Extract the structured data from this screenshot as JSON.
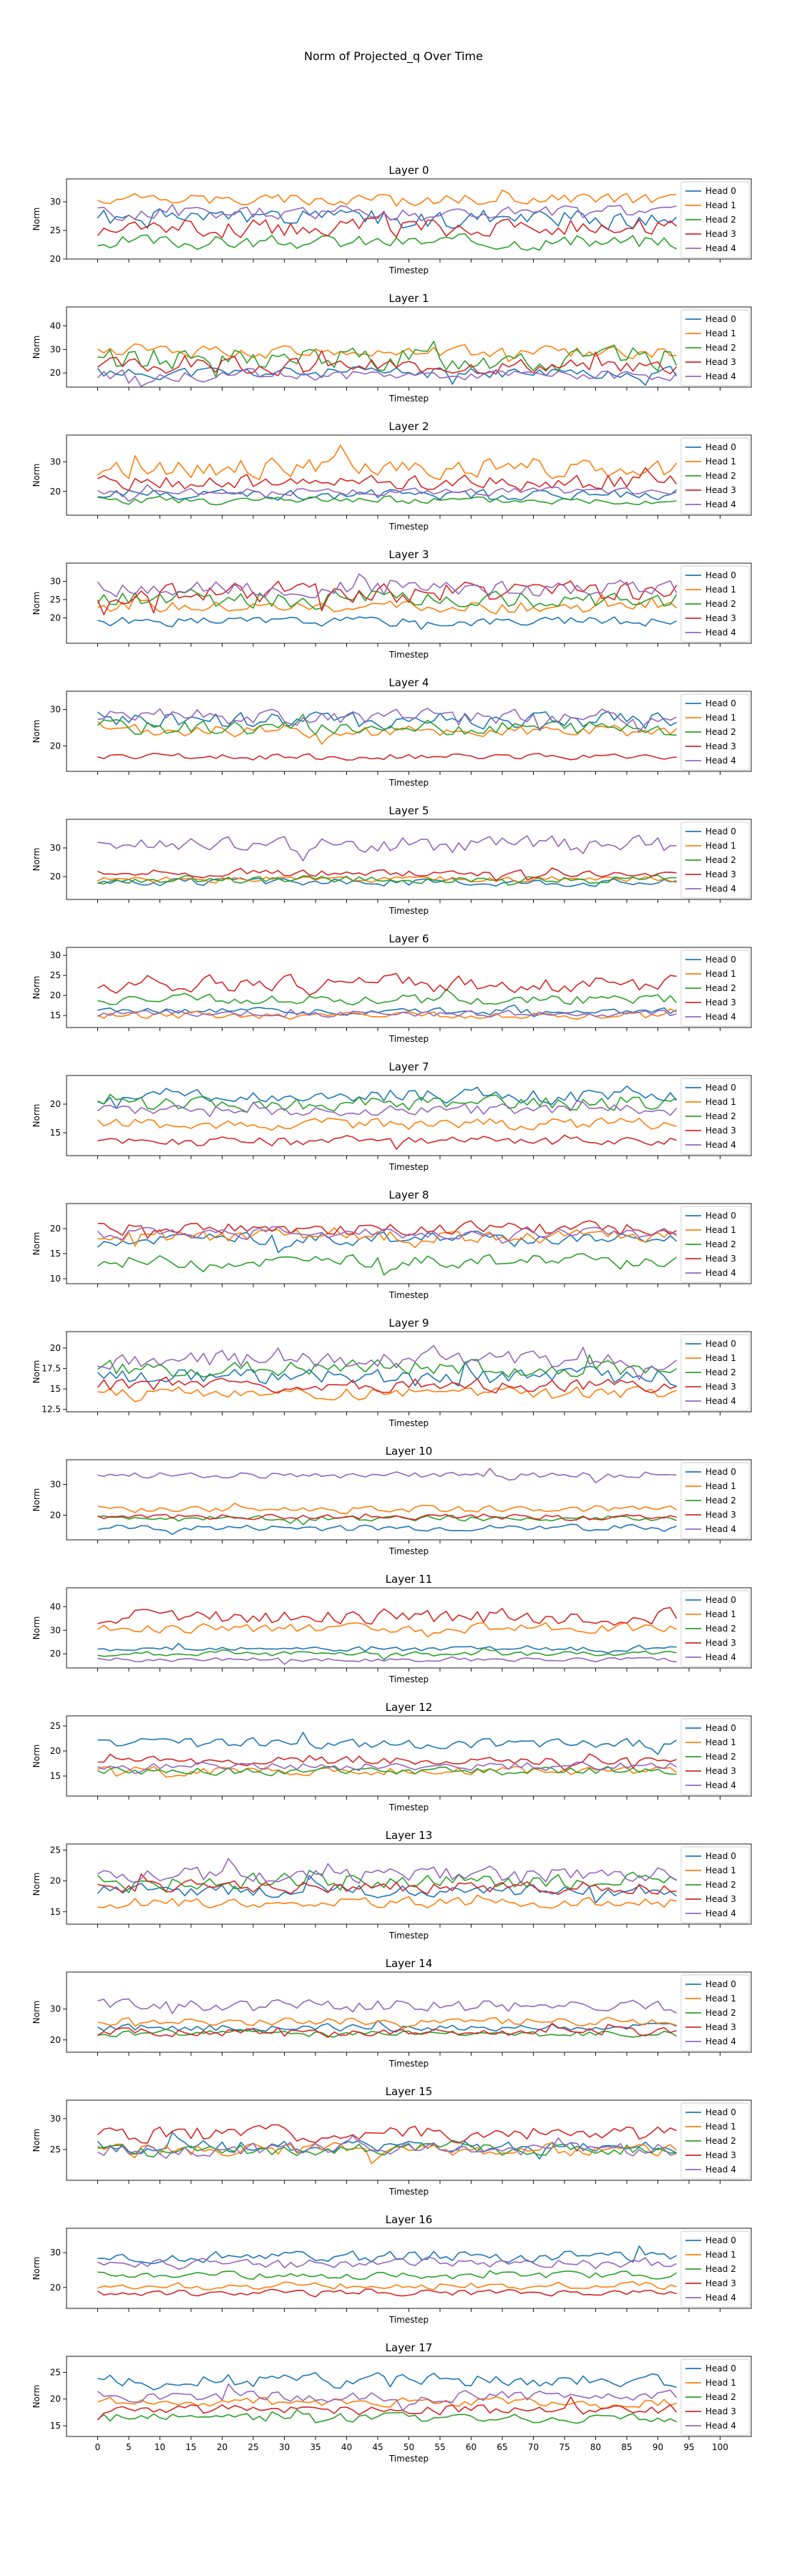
{
  "figure": {
    "title": "Norm of Projected_q Over Time",
    "series_colors": [
      "#1f77b4",
      "#ff7f0e",
      "#2ca02c",
      "#d62728",
      "#9467bd"
    ]
  },
  "chart_data": [
    {
      "type": "line",
      "title": "Layer 0",
      "xlabel": "Timestep",
      "ylabel": "Norm",
      "xlim": [
        -5,
        105
      ],
      "ylim": [
        20,
        34
      ],
      "yticks": [
        20,
        25,
        30
      ],
      "legend": "right",
      "series": [
        {
          "name": "Head 0",
          "base": 27,
          "amp": 2.0,
          "seed": 1
        },
        {
          "name": "Head 1",
          "base": 30.5,
          "amp": 1.2,
          "seed": 2
        },
        {
          "name": "Head 2",
          "base": 23,
          "amp": 1.5,
          "seed": 3
        },
        {
          "name": "Head 3",
          "base": 25.5,
          "amp": 2.0,
          "seed": 4
        },
        {
          "name": "Head 4",
          "base": 28,
          "amp": 1.5,
          "seed": 5
        }
      ]
    },
    {
      "type": "line",
      "title": "Layer 1",
      "xlabel": "Timestep",
      "ylabel": "Norm",
      "xlim": [
        -5,
        105
      ],
      "ylim": [
        14,
        48
      ],
      "yticks": [
        20,
        30,
        40
      ],
      "legend": "right",
      "series": [
        {
          "name": "Head 0",
          "base": 20,
          "amp": 3,
          "seed": 11
        },
        {
          "name": "Head 1",
          "base": 29,
          "amp": 3,
          "seed": 12
        },
        {
          "name": "Head 2",
          "base": 26,
          "amp": 6,
          "seed": 13
        },
        {
          "name": "Head 3",
          "base": 23,
          "amp": 4,
          "seed": 14
        },
        {
          "name": "Head 4",
          "base": 19,
          "amp": 2.5,
          "seed": 15
        }
      ]
    },
    {
      "type": "line",
      "title": "Layer 2",
      "xlabel": "Timestep",
      "ylabel": "Norm",
      "xlim": [
        -5,
        105
      ],
      "ylim": [
        12,
        39
      ],
      "yticks": [
        20,
        30
      ],
      "legend": "right",
      "series": [
        {
          "name": "Head 0",
          "base": 19,
          "amp": 2,
          "seed": 21
        },
        {
          "name": "Head 1",
          "base": 28,
          "amp": 4,
          "seed": 22
        },
        {
          "name": "Head 2",
          "base": 17,
          "amp": 1.5,
          "seed": 23
        },
        {
          "name": "Head 3",
          "base": 23,
          "amp": 3,
          "seed": 24
        },
        {
          "name": "Head 4",
          "base": 20,
          "amp": 1.5,
          "seed": 25
        }
      ]
    },
    {
      "type": "line",
      "title": "Layer 3",
      "xlabel": "Timestep",
      "ylabel": "Norm",
      "xlim": [
        -5,
        105
      ],
      "ylim": [
        13,
        35
      ],
      "yticks": [
        20,
        25,
        30
      ],
      "legend": "right",
      "series": [
        {
          "name": "Head 0",
          "base": 19,
          "amp": 1.5,
          "seed": 31
        },
        {
          "name": "Head 1",
          "base": 23,
          "amp": 2,
          "seed": 32
        },
        {
          "name": "Head 2",
          "base": 25,
          "amp": 3,
          "seed": 33
        },
        {
          "name": "Head 3",
          "base": 27,
          "amp": 3.5,
          "seed": 34
        },
        {
          "name": "Head 4",
          "base": 28,
          "amp": 2.5,
          "seed": 35
        }
      ]
    },
    {
      "type": "line",
      "title": "Layer 4",
      "xlabel": "Timestep",
      "ylabel": "Norm",
      "xlim": [
        -5,
        105
      ],
      "ylim": [
        13,
        35
      ],
      "yticks": [
        20,
        30
      ],
      "legend": "right",
      "series": [
        {
          "name": "Head 0",
          "base": 27,
          "amp": 3,
          "seed": 41
        },
        {
          "name": "Head 1",
          "base": 24,
          "amp": 2,
          "seed": 42
        },
        {
          "name": "Head 2",
          "base": 25,
          "amp": 2.5,
          "seed": 43
        },
        {
          "name": "Head 3",
          "base": 17,
          "amp": 1,
          "seed": 44
        },
        {
          "name": "Head 4",
          "base": 28,
          "amp": 2.5,
          "seed": 45
        }
      ]
    },
    {
      "type": "line",
      "title": "Layer 5",
      "xlabel": "Timestep",
      "ylabel": "Norm",
      "xlim": [
        -5,
        105
      ],
      "ylim": [
        12,
        40
      ],
      "yticks": [
        20,
        30
      ],
      "legend": "right",
      "series": [
        {
          "name": "Head 0",
          "base": 18,
          "amp": 1.5,
          "seed": 51
        },
        {
          "name": "Head 1",
          "base": 19,
          "amp": 1.2,
          "seed": 52
        },
        {
          "name": "Head 2",
          "base": 19,
          "amp": 1.5,
          "seed": 53
        },
        {
          "name": "Head 3",
          "base": 21,
          "amp": 1.5,
          "seed": 54
        },
        {
          "name": "Head 4",
          "base": 31,
          "amp": 3.5,
          "seed": 55
        }
      ]
    },
    {
      "type": "line",
      "title": "Layer 6",
      "xlabel": "Timestep",
      "ylabel": "Norm",
      "xlim": [
        -5,
        105
      ],
      "ylim": [
        12,
        32
      ],
      "yticks": [
        15,
        20,
        25,
        30
      ],
      "legend": "right",
      "series": [
        {
          "name": "Head 0",
          "base": 16,
          "amp": 1,
          "seed": 61
        },
        {
          "name": "Head 1",
          "base": 15,
          "amp": 1,
          "seed": 62
        },
        {
          "name": "Head 2",
          "base": 19,
          "amp": 1.5,
          "seed": 63
        },
        {
          "name": "Head 3",
          "base": 23,
          "amp": 2.5,
          "seed": 64
        },
        {
          "name": "Head 4",
          "base": 15.5,
          "amp": 1,
          "seed": 65
        }
      ]
    },
    {
      "type": "line",
      "title": "Layer 7",
      "xlabel": "Timestep",
      "ylabel": "Norm",
      "xlim": [
        -5,
        105
      ],
      "ylim": [
        11,
        25
      ],
      "yticks": [
        15,
        20
      ],
      "legend": "right",
      "series": [
        {
          "name": "Head 0",
          "base": 21.5,
          "amp": 1.5,
          "seed": 71
        },
        {
          "name": "Head 1",
          "base": 16.5,
          "amp": 1.2,
          "seed": 72
        },
        {
          "name": "Head 2",
          "base": 20,
          "amp": 1.5,
          "seed": 73
        },
        {
          "name": "Head 3",
          "base": 13.5,
          "amp": 1,
          "seed": 74
        },
        {
          "name": "Head 4",
          "base": 19,
          "amp": 1.2,
          "seed": 75
        }
      ]
    },
    {
      "type": "line",
      "title": "Layer 8",
      "xlabel": "Timestep",
      "ylabel": "Norm",
      "xlim": [
        -5,
        105
      ],
      "ylim": [
        9,
        25
      ],
      "yticks": [
        10,
        15,
        20
      ],
      "legend": "right",
      "series": [
        {
          "name": "Head 0",
          "base": 18,
          "amp": 1.5,
          "seed": 81
        },
        {
          "name": "Head 1",
          "base": 18.5,
          "amp": 1.5,
          "seed": 82
        },
        {
          "name": "Head 2",
          "base": 13.5,
          "amp": 1.5,
          "seed": 83
        },
        {
          "name": "Head 3",
          "base": 20,
          "amp": 1.5,
          "seed": 84
        },
        {
          "name": "Head 4",
          "base": 19,
          "amp": 1.2,
          "seed": 85
        }
      ]
    },
    {
      "type": "line",
      "title": "Layer 9",
      "xlabel": "Timestep",
      "ylabel": "Norm",
      "xlim": [
        -5,
        105
      ],
      "ylim": [
        12.2,
        22
      ],
      "yticks": [
        12.5,
        15.0,
        17.5,
        20.0
      ],
      "legend": "right",
      "series": [
        {
          "name": "Head 0",
          "base": 16.5,
          "amp": 1.2,
          "seed": 91
        },
        {
          "name": "Head 1",
          "base": 14.5,
          "amp": 0.8,
          "seed": 92
        },
        {
          "name": "Head 2",
          "base": 17.5,
          "amp": 1.2,
          "seed": 93
        },
        {
          "name": "Head 3",
          "base": 15.5,
          "amp": 1,
          "seed": 94
        },
        {
          "name": "Head 4",
          "base": 18.5,
          "amp": 1.2,
          "seed": 95
        }
      ]
    },
    {
      "type": "line",
      "title": "Layer 10",
      "xlabel": "Timestep",
      "ylabel": "Norm",
      "xlim": [
        -5,
        105
      ],
      "ylim": [
        12,
        38
      ],
      "yticks": [
        20,
        30
      ],
      "legend": "right",
      "series": [
        {
          "name": "Head 0",
          "base": 16,
          "amp": 1.2,
          "seed": 101
        },
        {
          "name": "Head 1",
          "base": 22,
          "amp": 1.2,
          "seed": 102
        },
        {
          "name": "Head 2",
          "base": 19,
          "amp": 1,
          "seed": 103
        },
        {
          "name": "Head 3",
          "base": 19.5,
          "amp": 1,
          "seed": 104
        },
        {
          "name": "Head 4",
          "base": 33,
          "amp": 1.2,
          "seed": 105
        }
      ]
    },
    {
      "type": "line",
      "title": "Layer 11",
      "xlabel": "Timestep",
      "ylabel": "Norm",
      "xlim": [
        -5,
        105
      ],
      "ylim": [
        14,
        48
      ],
      "yticks": [
        20,
        30,
        40
      ],
      "legend": "right",
      "series": [
        {
          "name": "Head 0",
          "base": 22,
          "amp": 1.2,
          "seed": 111
        },
        {
          "name": "Head 1",
          "base": 31,
          "amp": 2.5,
          "seed": 112
        },
        {
          "name": "Head 2",
          "base": 20,
          "amp": 1.2,
          "seed": 113
        },
        {
          "name": "Head 3",
          "base": 36,
          "amp": 4,
          "seed": 114
        },
        {
          "name": "Head 4",
          "base": 17.5,
          "amp": 1,
          "seed": 115
        }
      ]
    },
    {
      "type": "line",
      "title": "Layer 12",
      "xlabel": "Timestep",
      "ylabel": "Norm",
      "xlim": [
        -5,
        105
      ],
      "ylim": [
        11,
        27
      ],
      "yticks": [
        15,
        20,
        25
      ],
      "legend": "right",
      "series": [
        {
          "name": "Head 0",
          "base": 21.5,
          "amp": 1.2,
          "seed": 121
        },
        {
          "name": "Head 1",
          "base": 16,
          "amp": 1,
          "seed": 122
        },
        {
          "name": "Head 2",
          "base": 16,
          "amp": 1,
          "seed": 123
        },
        {
          "name": "Head 3",
          "base": 18,
          "amp": 1,
          "seed": 124
        },
        {
          "name": "Head 4",
          "base": 17,
          "amp": 1,
          "seed": 125
        }
      ]
    },
    {
      "type": "line",
      "title": "Layer 13",
      "xlabel": "Timestep",
      "ylabel": "Norm",
      "xlim": [
        -5,
        105
      ],
      "ylim": [
        13,
        26
      ],
      "yticks": [
        15,
        20,
        25
      ],
      "legend": "right",
      "series": [
        {
          "name": "Head 0",
          "base": 18.5,
          "amp": 1.2,
          "seed": 131
        },
        {
          "name": "Head 1",
          "base": 16.5,
          "amp": 1,
          "seed": 132
        },
        {
          "name": "Head 2",
          "base": 20,
          "amp": 1.5,
          "seed": 133
        },
        {
          "name": "Head 3",
          "base": 19,
          "amp": 1.2,
          "seed": 134
        },
        {
          "name": "Head 4",
          "base": 21,
          "amp": 1.5,
          "seed": 135
        }
      ]
    },
    {
      "type": "line",
      "title": "Layer 14",
      "xlabel": "Timestep",
      "ylabel": "Norm",
      "xlim": [
        -5,
        105
      ],
      "ylim": [
        16,
        42
      ],
      "yticks": [
        20,
        30
      ],
      "legend": "right",
      "series": [
        {
          "name": "Head 0",
          "base": 24,
          "amp": 1.5,
          "seed": 141
        },
        {
          "name": "Head 1",
          "base": 26,
          "amp": 1.5,
          "seed": 142
        },
        {
          "name": "Head 2",
          "base": 22,
          "amp": 1.2,
          "seed": 143
        },
        {
          "name": "Head 3",
          "base": 22.5,
          "amp": 1.5,
          "seed": 144
        },
        {
          "name": "Head 4",
          "base": 31,
          "amp": 2.5,
          "seed": 145
        }
      ]
    },
    {
      "type": "line",
      "title": "Layer 15",
      "xlabel": "Timestep",
      "ylabel": "Norm",
      "xlim": [
        -5,
        105
      ],
      "ylim": [
        20,
        33
      ],
      "yticks": [
        25,
        30
      ],
      "legend": "right",
      "series": [
        {
          "name": "Head 0",
          "base": 25.5,
          "amp": 1.2,
          "seed": 151
        },
        {
          "name": "Head 1",
          "base": 25,
          "amp": 1.2,
          "seed": 152
        },
        {
          "name": "Head 2",
          "base": 25,
          "amp": 1.2,
          "seed": 153
        },
        {
          "name": "Head 3",
          "base": 27.5,
          "amp": 1.5,
          "seed": 154
        },
        {
          "name": "Head 4",
          "base": 25,
          "amp": 1.2,
          "seed": 155
        }
      ]
    },
    {
      "type": "line",
      "title": "Layer 16",
      "xlabel": "Timestep",
      "ylabel": "Norm",
      "xlim": [
        -5,
        105
      ],
      "ylim": [
        14,
        37
      ],
      "yticks": [
        20,
        30
      ],
      "legend": "right",
      "series": [
        {
          "name": "Head 0",
          "base": 29,
          "amp": 2,
          "seed": 161
        },
        {
          "name": "Head 1",
          "base": 20.5,
          "amp": 1.2,
          "seed": 162
        },
        {
          "name": "Head 2",
          "base": 23.5,
          "amp": 1.2,
          "seed": 163
        },
        {
          "name": "Head 3",
          "base": 18.5,
          "amp": 1,
          "seed": 164
        },
        {
          "name": "Head 4",
          "base": 27,
          "amp": 1.5,
          "seed": 165
        }
      ]
    },
    {
      "type": "line",
      "title": "Layer 17",
      "xlabel": "Timestep",
      "ylabel": "Norm",
      "xlim": [
        -5,
        105
      ],
      "ylim": [
        13,
        28
      ],
      "yticks": [
        15,
        20,
        25
      ],
      "legend": "right",
      "series": [
        {
          "name": "Head 0",
          "base": 23.5,
          "amp": 1.5,
          "seed": 171
        },
        {
          "name": "Head 1",
          "base": 19.5,
          "amp": 1,
          "seed": 172
        },
        {
          "name": "Head 2",
          "base": 16.5,
          "amp": 1,
          "seed": 173
        },
        {
          "name": "Head 3",
          "base": 18,
          "amp": 1.2,
          "seed": 174
        },
        {
          "name": "Head 4",
          "base": 20.5,
          "amp": 1.2,
          "seed": 175
        }
      ]
    }
  ],
  "x_ticks": [
    "0",
    "5",
    "10",
    "15",
    "20",
    "25",
    "30",
    "35",
    "40",
    "45",
    "50",
    "55",
    "60",
    "65",
    "70",
    "75",
    "80",
    "85",
    "90",
    "95",
    "100"
  ],
  "timesteps": 94
}
